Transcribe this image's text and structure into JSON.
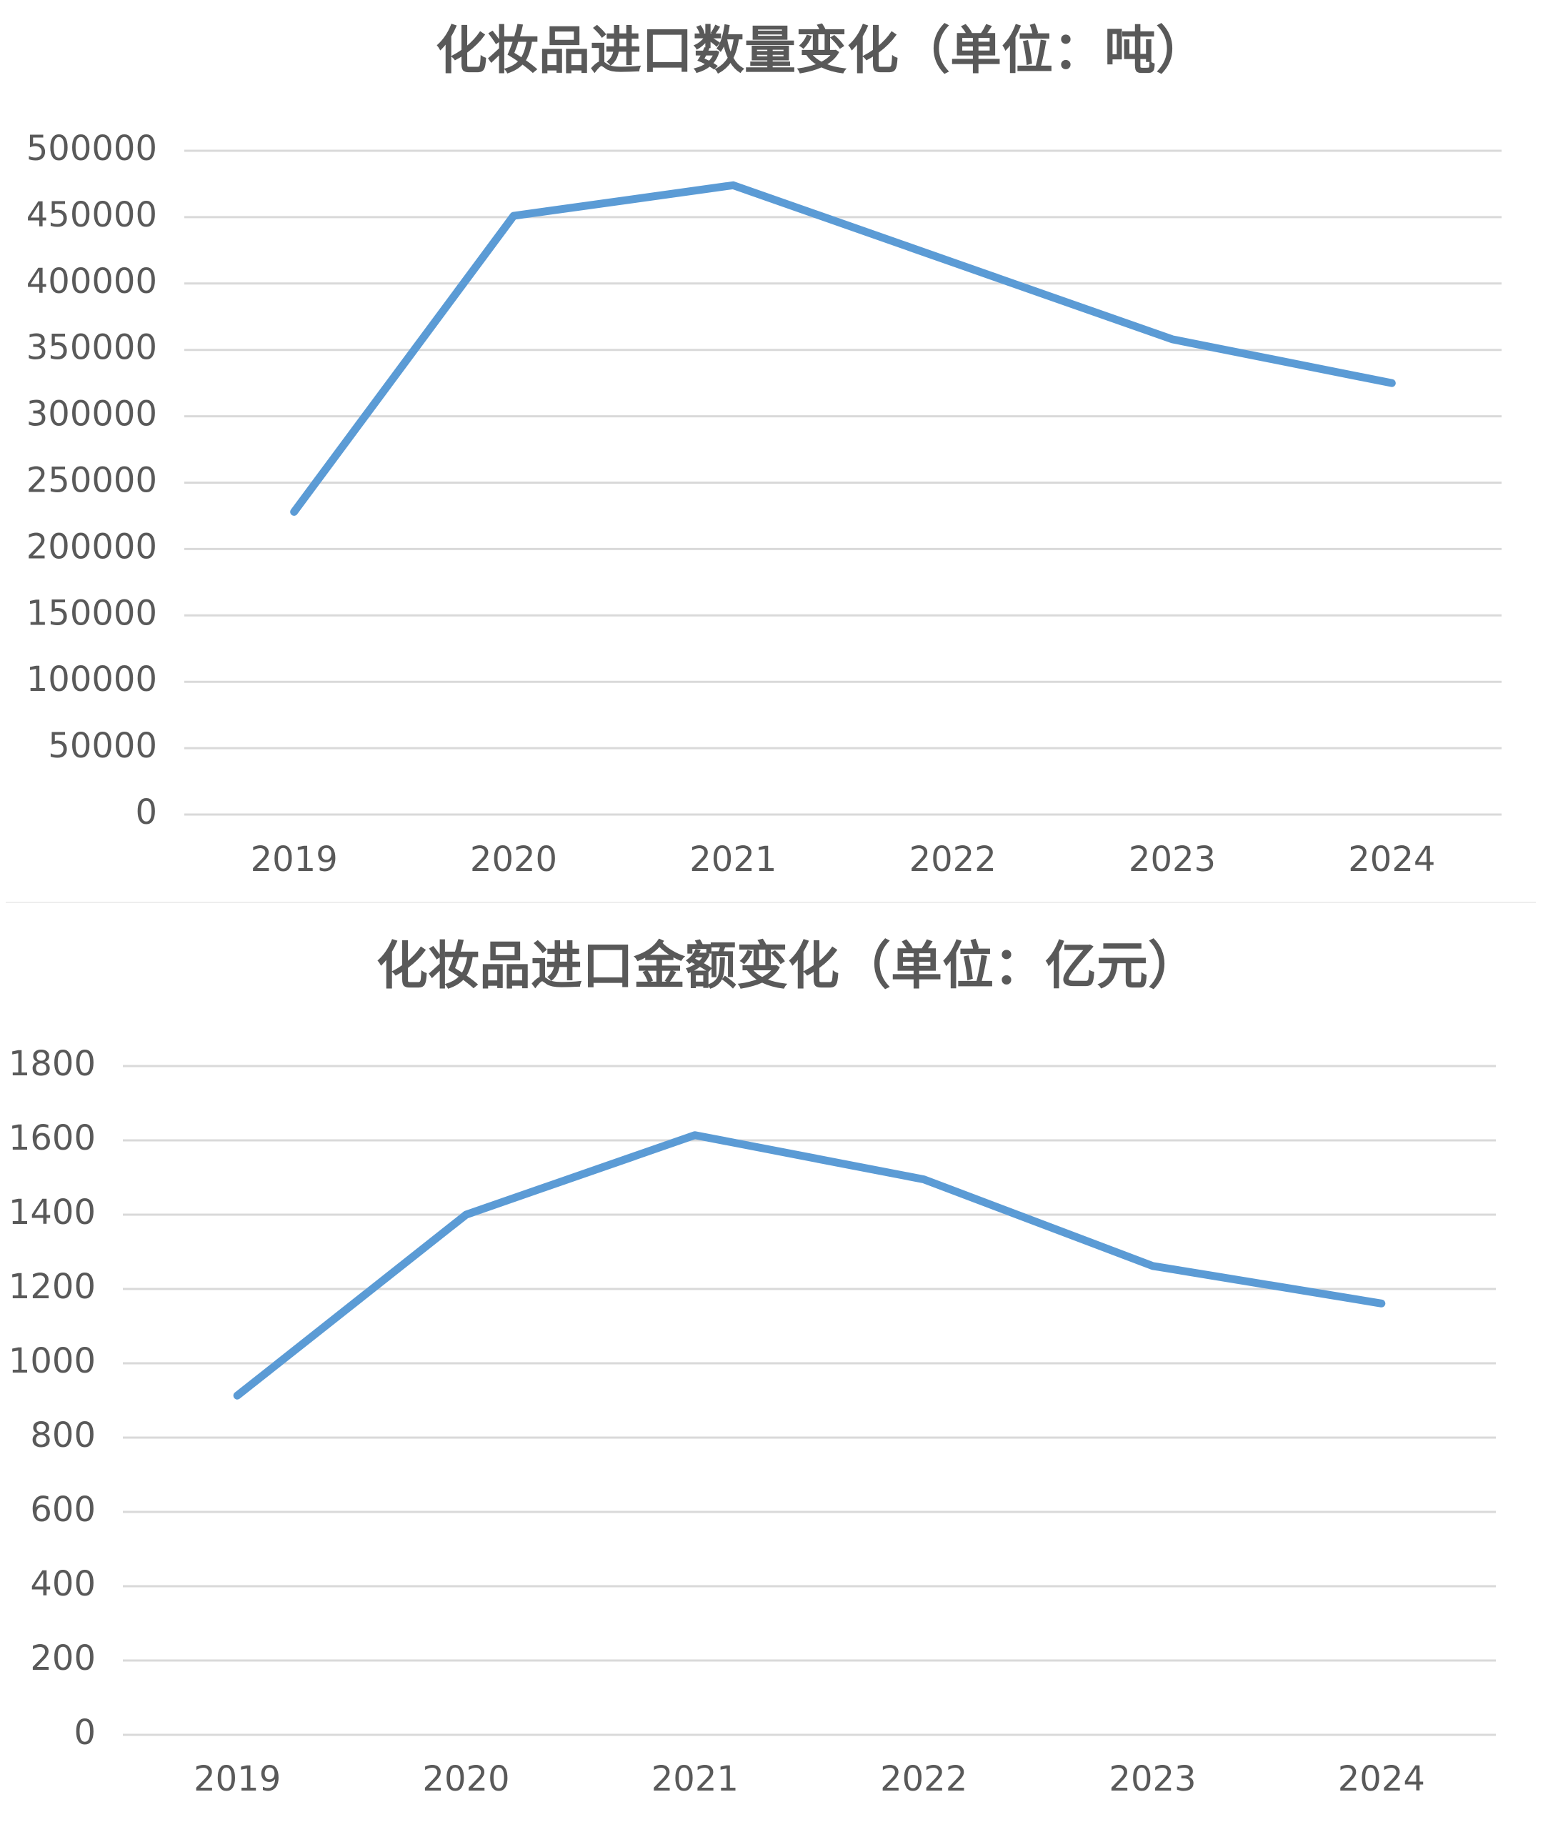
{
  "chart_data": [
    {
      "type": "line",
      "title": "化妆品进口数量变化（单位：吨）",
      "categories": [
        "2019",
        "2020",
        "2021",
        "2022",
        "2023",
        "2024"
      ],
      "values": [
        228000,
        451000,
        474000,
        416000,
        358000,
        325000
      ],
      "color": "#5b9bd5",
      "ylim": [
        0,
        500000
      ],
      "yticks": [
        0,
        50000,
        100000,
        150000,
        200000,
        250000,
        300000,
        350000,
        400000,
        450000,
        500000
      ],
      "grid": true
    },
    {
      "type": "line",
      "title": "化妆品进口金额变化（单位：亿元）",
      "categories": [
        "2019",
        "2020",
        "2021",
        "2022",
        "2023",
        "2024"
      ],
      "values": [
        913,
        1400,
        1614,
        1495,
        1262,
        1161
      ],
      "color": "#5b9bd5",
      "ylim": [
        0,
        1800
      ],
      "yticks": [
        0,
        200,
        400,
        600,
        800,
        1000,
        1200,
        1400,
        1600,
        1800
      ],
      "grid": true
    }
  ]
}
